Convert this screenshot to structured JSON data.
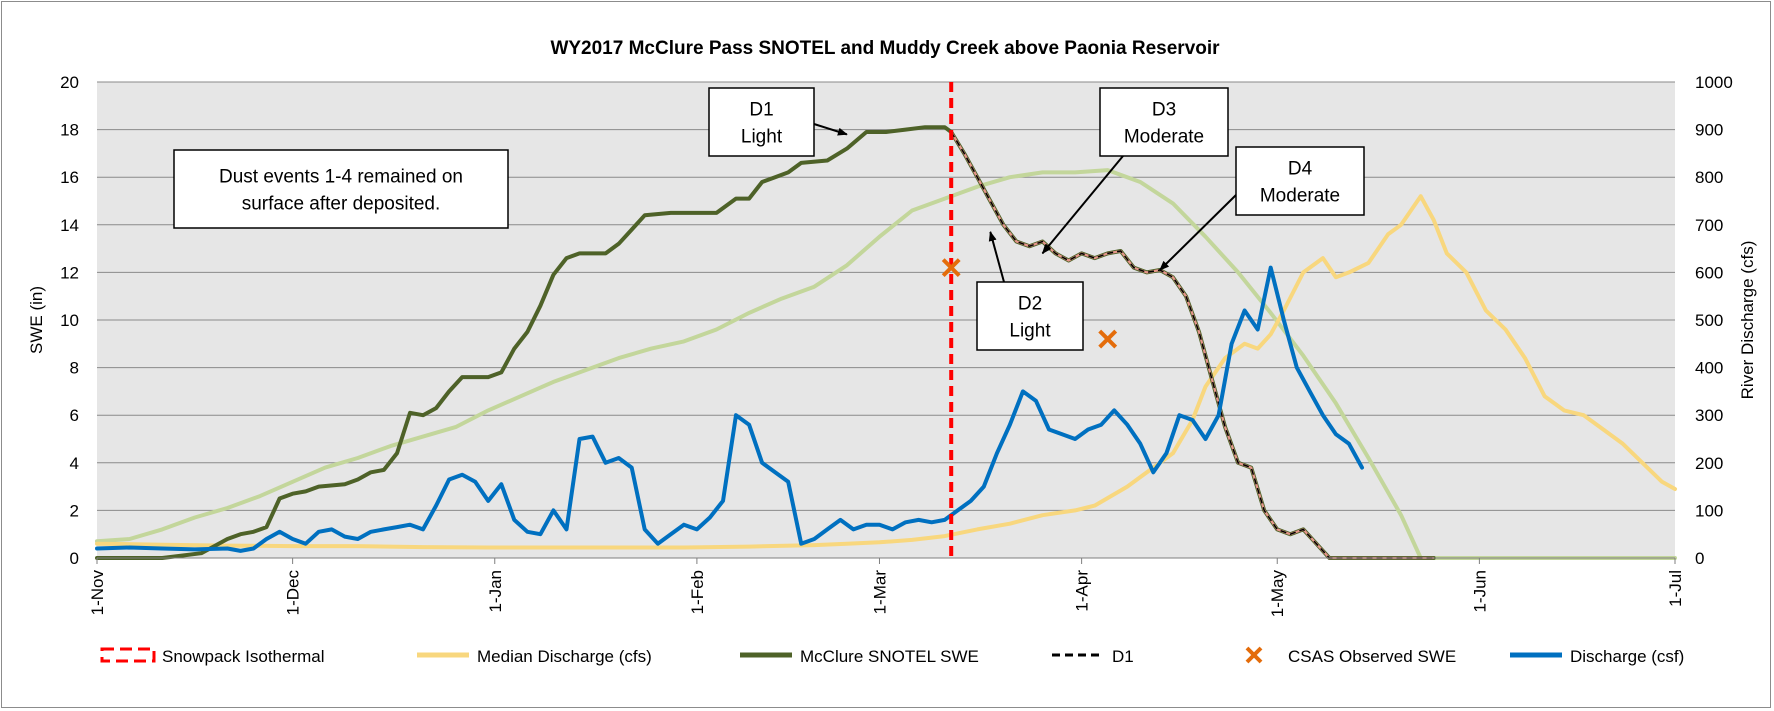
{
  "chart_data": {
    "type": "line",
    "title": "WY2017 McClure Pass SNOTEL and Muddy Creek above Paonia Reservoir",
    "y_left_label": "SWE (in)",
    "y_right_label": "River Discharge (cfs)",
    "y_left_lim": [
      0,
      20
    ],
    "y_left_ticks": [
      "0",
      "2",
      "4",
      "6",
      "8",
      "10",
      "12",
      "14",
      "16",
      "18",
      "20"
    ],
    "y_right_lim": [
      0,
      1000
    ],
    "y_right_ticks": [
      "0",
      "100",
      "200",
      "300",
      "400",
      "500",
      "600",
      "700",
      "800",
      "900",
      "1000"
    ],
    "x_range_days": [
      0,
      242
    ],
    "x_ticks": [
      {
        "label": "1-Nov",
        "day": 0
      },
      {
        "label": "1-Dec",
        "day": 30
      },
      {
        "label": "1-Jan",
        "day": 61
      },
      {
        "label": "1-Feb",
        "day": 92
      },
      {
        "label": "1-Mar",
        "day": 120
      },
      {
        "label": "1-Apr",
        "day": 151
      },
      {
        "label": "1-May",
        "day": 181
      },
      {
        "label": "1-Jun",
        "day": 212
      },
      {
        "label": "1-Jul",
        "day": 242
      }
    ],
    "grid": "horizontal",
    "legend_position": "bottom",
    "colors": {
      "plot_bg": "#e6e6e6",
      "isothermal": "#ff0000",
      "median_discharge": "#f8d77e",
      "snotel_swe": "#4e6228",
      "median_swe": "#c3d69b",
      "d1": "#000000",
      "d1_overlay": "#e6958a",
      "csas": "#e46c0a",
      "discharge": "#0070c0"
    },
    "legend": [
      {
        "key": "isothermal",
        "label": "Snowpack Isothermal"
      },
      {
        "key": "median_discharge",
        "label": "Median Discharge (cfs)"
      },
      {
        "key": "snotel_swe",
        "label": "McClure SNOTEL SWE"
      },
      {
        "key": "d1",
        "label": "D1"
      },
      {
        "key": "csas",
        "label": "CSAS Observed SWE"
      },
      {
        "key": "discharge",
        "label": "Discharge (csf)"
      }
    ],
    "isothermal_day": 131,
    "series": [
      {
        "key": "median_swe",
        "axis": "left",
        "points": [
          [
            0,
            0.7
          ],
          [
            5,
            0.8
          ],
          [
            10,
            1.2
          ],
          [
            15,
            1.7
          ],
          [
            20,
            2.1
          ],
          [
            25,
            2.6
          ],
          [
            30,
            3.2
          ],
          [
            35,
            3.8
          ],
          [
            40,
            4.2
          ],
          [
            45,
            4.7
          ],
          [
            50,
            5.1
          ],
          [
            55,
            5.5
          ],
          [
            60,
            6.2
          ],
          [
            65,
            6.8
          ],
          [
            70,
            7.4
          ],
          [
            75,
            7.9
          ],
          [
            80,
            8.4
          ],
          [
            85,
            8.8
          ],
          [
            90,
            9.1
          ],
          [
            95,
            9.6
          ],
          [
            100,
            10.3
          ],
          [
            105,
            10.9
          ],
          [
            110,
            11.4
          ],
          [
            115,
            12.3
          ],
          [
            120,
            13.5
          ],
          [
            125,
            14.6
          ],
          [
            130,
            15.1
          ],
          [
            135,
            15.6
          ],
          [
            140,
            16.0
          ],
          [
            145,
            16.2
          ],
          [
            150,
            16.2
          ],
          [
            155,
            16.3
          ],
          [
            160,
            15.8
          ],
          [
            165,
            14.9
          ],
          [
            170,
            13.5
          ],
          [
            175,
            12.0
          ],
          [
            180,
            10.3
          ],
          [
            185,
            8.5
          ],
          [
            190,
            6.5
          ],
          [
            195,
            4.2
          ],
          [
            200,
            1.8
          ],
          [
            203,
            0
          ],
          [
            242,
            0
          ]
        ]
      },
      {
        "key": "median_discharge",
        "axis": "right",
        "points": [
          [
            0,
            30
          ],
          [
            10,
            28
          ],
          [
            20,
            26
          ],
          [
            30,
            25
          ],
          [
            40,
            25
          ],
          [
            50,
            23
          ],
          [
            60,
            22
          ],
          [
            70,
            22
          ],
          [
            80,
            22
          ],
          [
            90,
            22
          ],
          [
            100,
            24
          ],
          [
            110,
            27
          ],
          [
            115,
            30
          ],
          [
            120,
            33
          ],
          [
            125,
            38
          ],
          [
            130,
            46
          ],
          [
            135,
            60
          ],
          [
            140,
            72
          ],
          [
            145,
            90
          ],
          [
            150,
            100
          ],
          [
            153,
            110
          ],
          [
            158,
            150
          ],
          [
            162,
            190
          ],
          [
            165,
            220
          ],
          [
            168,
            290
          ],
          [
            170,
            360
          ],
          [
            173,
            420
          ],
          [
            176,
            450
          ],
          [
            178,
            440
          ],
          [
            180,
            470
          ],
          [
            182,
            520
          ],
          [
            185,
            600
          ],
          [
            188,
            630
          ],
          [
            190,
            590
          ],
          [
            192,
            600
          ],
          [
            195,
            620
          ],
          [
            198,
            680
          ],
          [
            200,
            700
          ],
          [
            203,
            760
          ],
          [
            205,
            710
          ],
          [
            207,
            640
          ],
          [
            210,
            600
          ],
          [
            213,
            520
          ],
          [
            216,
            480
          ],
          [
            219,
            420
          ],
          [
            222,
            340
          ],
          [
            225,
            310
          ],
          [
            228,
            300
          ],
          [
            231,
            270
          ],
          [
            234,
            240
          ],
          [
            237,
            200
          ],
          [
            240,
            160
          ],
          [
            242,
            145
          ]
        ]
      },
      {
        "key": "snotel_swe",
        "axis": "left",
        "points": [
          [
            0,
            0
          ],
          [
            5,
            0
          ],
          [
            10,
            0
          ],
          [
            13,
            0.1
          ],
          [
            16,
            0.2
          ],
          [
            18,
            0.5
          ],
          [
            20,
            0.8
          ],
          [
            22,
            1.0
          ],
          [
            24,
            1.1
          ],
          [
            26,
            1.3
          ],
          [
            28,
            2.5
          ],
          [
            30,
            2.7
          ],
          [
            32,
            2.8
          ],
          [
            34,
            3.0
          ],
          [
            38,
            3.1
          ],
          [
            40,
            3.3
          ],
          [
            42,
            3.6
          ],
          [
            44,
            3.7
          ],
          [
            46,
            4.4
          ],
          [
            48,
            6.1
          ],
          [
            50,
            6.0
          ],
          [
            52,
            6.3
          ],
          [
            54,
            7.0
          ],
          [
            56,
            7.6
          ],
          [
            60,
            7.6
          ],
          [
            62,
            7.8
          ],
          [
            64,
            8.8
          ],
          [
            66,
            9.5
          ],
          [
            68,
            10.6
          ],
          [
            70,
            11.9
          ],
          [
            72,
            12.6
          ],
          [
            74,
            12.8
          ],
          [
            78,
            12.8
          ],
          [
            80,
            13.2
          ],
          [
            82,
            13.8
          ],
          [
            84,
            14.4
          ],
          [
            88,
            14.5
          ],
          [
            95,
            14.5
          ],
          [
            98,
            15.1
          ],
          [
            100,
            15.1
          ],
          [
            102,
            15.8
          ],
          [
            104,
            16.0
          ],
          [
            106,
            16.2
          ],
          [
            108,
            16.6
          ],
          [
            112,
            16.7
          ],
          [
            115,
            17.2
          ],
          [
            118,
            17.9
          ],
          [
            121,
            17.9
          ],
          [
            124,
            18.0
          ],
          [
            127,
            18.1
          ],
          [
            130,
            18.1
          ],
          [
            131,
            17.9
          ],
          [
            133,
            17.0
          ],
          [
            135,
            16.0
          ],
          [
            137,
            15.0
          ],
          [
            139,
            14.0
          ],
          [
            141,
            13.3
          ],
          [
            143,
            13.1
          ],
          [
            145,
            13.3
          ],
          [
            147,
            12.8
          ],
          [
            149,
            12.5
          ],
          [
            151,
            12.8
          ],
          [
            153,
            12.6
          ],
          [
            155,
            12.8
          ],
          [
            157,
            12.9
          ],
          [
            159,
            12.2
          ],
          [
            161,
            12.0
          ],
          [
            163,
            12.1
          ],
          [
            165,
            11.8
          ],
          [
            167,
            11.0
          ],
          [
            169,
            9.5
          ],
          [
            171,
            7.5
          ],
          [
            173,
            5.5
          ],
          [
            175,
            4.0
          ],
          [
            177,
            3.8
          ],
          [
            179,
            2.0
          ],
          [
            181,
            1.2
          ],
          [
            183,
            1.0
          ],
          [
            185,
            1.2
          ],
          [
            187,
            0.6
          ],
          [
            189,
            0
          ],
          [
            205,
            0
          ]
        ]
      },
      {
        "key": "discharge",
        "axis": "right",
        "points": [
          [
            0,
            20
          ],
          [
            5,
            22
          ],
          [
            10,
            20
          ],
          [
            15,
            18
          ],
          [
            20,
            20
          ],
          [
            22,
            15
          ],
          [
            24,
            20
          ],
          [
            26,
            40
          ],
          [
            28,
            55
          ],
          [
            30,
            40
          ],
          [
            32,
            30
          ],
          [
            34,
            55
          ],
          [
            36,
            60
          ],
          [
            38,
            45
          ],
          [
            40,
            40
          ],
          [
            42,
            55
          ],
          [
            44,
            60
          ],
          [
            46,
            65
          ],
          [
            48,
            70
          ],
          [
            50,
            60
          ],
          [
            52,
            110
          ],
          [
            54,
            165
          ],
          [
            56,
            175
          ],
          [
            58,
            160
          ],
          [
            60,
            120
          ],
          [
            62,
            155
          ],
          [
            64,
            80
          ],
          [
            66,
            55
          ],
          [
            68,
            50
          ],
          [
            70,
            100
          ],
          [
            72,
            60
          ],
          [
            74,
            250
          ],
          [
            76,
            255
          ],
          [
            78,
            200
          ],
          [
            80,
            210
          ],
          [
            82,
            190
          ],
          [
            84,
            60
          ],
          [
            86,
            30
          ],
          [
            88,
            50
          ],
          [
            90,
            70
          ],
          [
            92,
            60
          ],
          [
            94,
            85
          ],
          [
            96,
            120
          ],
          [
            98,
            300
          ],
          [
            100,
            280
          ],
          [
            102,
            200
          ],
          [
            104,
            180
          ],
          [
            106,
            160
          ],
          [
            108,
            30
          ],
          [
            110,
            40
          ],
          [
            112,
            60
          ],
          [
            114,
            80
          ],
          [
            116,
            60
          ],
          [
            118,
            70
          ],
          [
            120,
            70
          ],
          [
            122,
            60
          ],
          [
            124,
            75
          ],
          [
            126,
            80
          ],
          [
            128,
            75
          ],
          [
            130,
            80
          ],
          [
            132,
            100
          ],
          [
            134,
            120
          ],
          [
            136,
            150
          ],
          [
            138,
            220
          ],
          [
            140,
            280
          ],
          [
            142,
            350
          ],
          [
            144,
            330
          ],
          [
            146,
            270
          ],
          [
            148,
            260
          ],
          [
            150,
            250
          ],
          [
            152,
            270
          ],
          [
            154,
            280
          ],
          [
            156,
            310
          ],
          [
            158,
            280
          ],
          [
            160,
            240
          ],
          [
            162,
            180
          ],
          [
            164,
            220
          ],
          [
            166,
            300
          ],
          [
            168,
            290
          ],
          [
            170,
            250
          ],
          [
            172,
            300
          ],
          [
            174,
            450
          ],
          [
            176,
            520
          ],
          [
            178,
            480
          ],
          [
            180,
            610
          ],
          [
            182,
            500
          ],
          [
            184,
            400
          ],
          [
            186,
            350
          ],
          [
            188,
            300
          ],
          [
            190,
            260
          ],
          [
            192,
            240
          ],
          [
            194,
            190
          ]
        ]
      }
    ],
    "csas_points": [
      [
        131,
        12.2
      ],
      [
        155,
        9.2
      ]
    ],
    "annotations": [
      {
        "id": "d1",
        "lines": [
          "D1",
          "Light"
        ]
      },
      {
        "id": "d2",
        "lines": [
          "D2",
          "Light"
        ]
      },
      {
        "id": "d3",
        "lines": [
          "D3",
          "Moderate"
        ]
      },
      {
        "id": "d4",
        "lines": [
          "D4",
          "Moderate"
        ]
      },
      {
        "id": "note",
        "lines": [
          "Dust events 1-4 remained on",
          "surface after deposited."
        ]
      }
    ]
  }
}
